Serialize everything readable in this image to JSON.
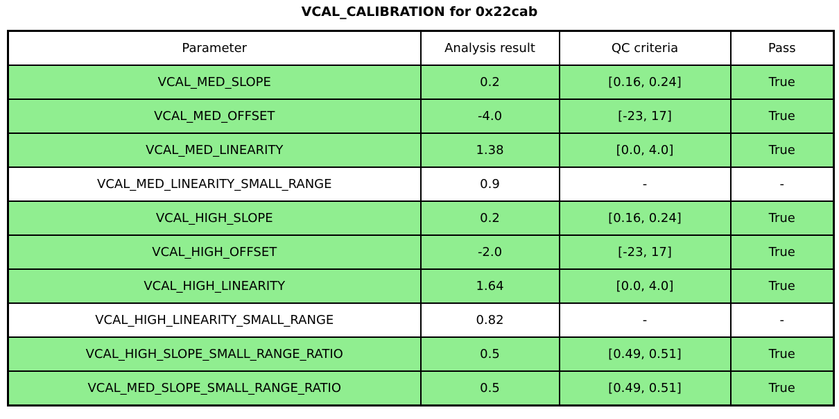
{
  "title": "VCAL_CALIBRATION for 0x22cab",
  "colors": {
    "pass_row_bg": "#90ee90",
    "default_row_bg": "#ffffff",
    "border": "#000000",
    "text": "#000000"
  },
  "chart_data": {
    "type": "table",
    "title": "VCAL_CALIBRATION for 0x22cab",
    "columns": [
      "Parameter",
      "Analysis result",
      "QC criteria",
      "Pass"
    ],
    "rows": [
      {
        "parameter": "VCAL_MED_SLOPE",
        "result": "0.2",
        "qc": "[0.16, 0.24]",
        "pass": "True",
        "highlight": true
      },
      {
        "parameter": "VCAL_MED_OFFSET",
        "result": "-4.0",
        "qc": "[-23, 17]",
        "pass": "True",
        "highlight": true
      },
      {
        "parameter": "VCAL_MED_LINEARITY",
        "result": "1.38",
        "qc": "[0.0, 4.0]",
        "pass": "True",
        "highlight": true
      },
      {
        "parameter": "VCAL_MED_LINEARITY_SMALL_RANGE",
        "result": "0.9",
        "qc": "-",
        "pass": "-",
        "highlight": false
      },
      {
        "parameter": "VCAL_HIGH_SLOPE",
        "result": "0.2",
        "qc": "[0.16, 0.24]",
        "pass": "True",
        "highlight": true
      },
      {
        "parameter": "VCAL_HIGH_OFFSET",
        "result": "-2.0",
        "qc": "[-23, 17]",
        "pass": "True",
        "highlight": true
      },
      {
        "parameter": "VCAL_HIGH_LINEARITY",
        "result": "1.64",
        "qc": "[0.0, 4.0]",
        "pass": "True",
        "highlight": true
      },
      {
        "parameter": "VCAL_HIGH_LINEARITY_SMALL_RANGE",
        "result": "0.82",
        "qc": "-",
        "pass": "-",
        "highlight": false
      },
      {
        "parameter": "VCAL_HIGH_SLOPE_SMALL_RANGE_RATIO",
        "result": "0.5",
        "qc": "[0.49, 0.51]",
        "pass": "True",
        "highlight": true
      },
      {
        "parameter": "VCAL_MED_SLOPE_SMALL_RANGE_RATIO",
        "result": "0.5",
        "qc": "[0.49, 0.51]",
        "pass": "True",
        "highlight": true
      }
    ]
  }
}
